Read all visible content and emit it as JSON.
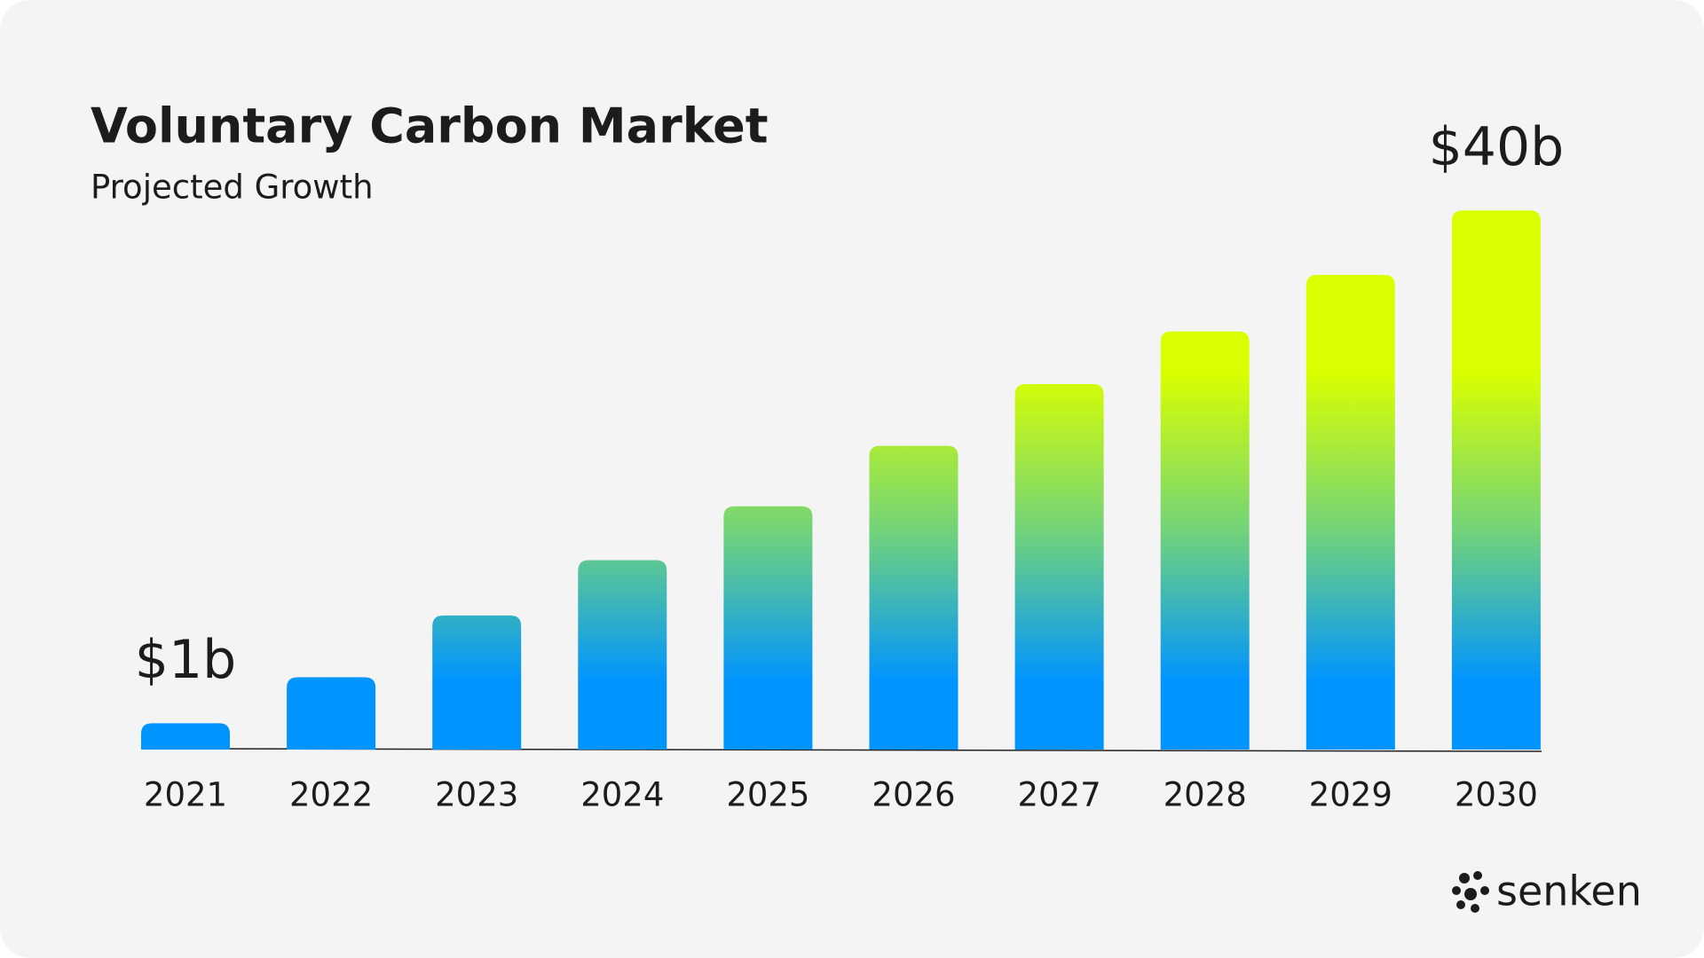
{
  "chart_data": {
    "type": "bar",
    "title": "Voluntary Carbon Market",
    "subtitle": "Projected Growth",
    "categories": [
      "2021",
      "2022",
      "2023",
      "2024",
      "2025",
      "2026",
      "2027",
      "2028",
      "2029",
      "2030"
    ],
    "values": [
      1,
      4.5,
      9.2,
      13.4,
      17.5,
      22.1,
      26.8,
      30.8,
      35.1,
      40
    ],
    "value_labels": [
      "$1b",
      null,
      null,
      null,
      null,
      null,
      null,
      null,
      null,
      "$40b"
    ],
    "gradient": [
      "#0094ff",
      "#d9ff00"
    ],
    "ylim": [
      -1,
      44
    ]
  },
  "brand": "senken"
}
